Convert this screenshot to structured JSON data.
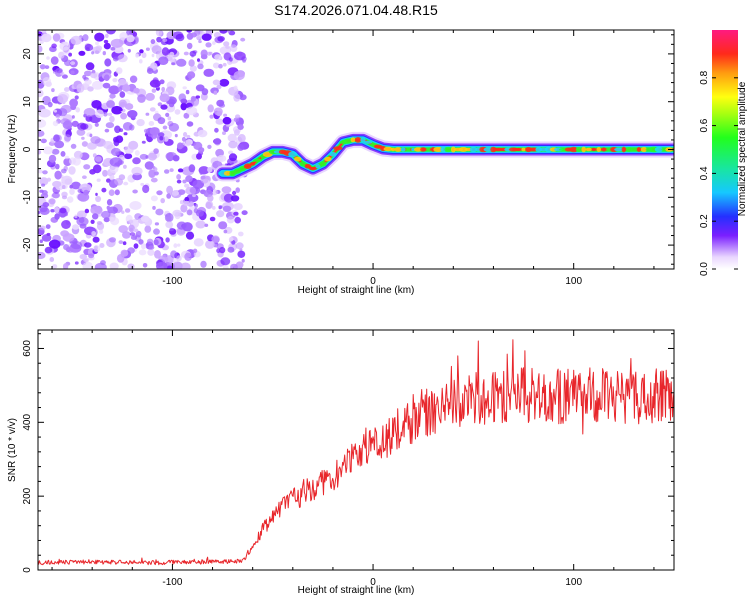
{
  "title": "S174.2026.071.04.48.R15",
  "chart_data": [
    {
      "type": "heatmap",
      "xlabel": "Height of straight line (km)",
      "ylabel": "Frequency (Hz)",
      "xlim": [
        -167,
        150
      ],
      "ylim": [
        -25,
        25
      ],
      "xticks": [
        -100,
        0,
        100
      ],
      "yticks": [
        -20,
        -10,
        0,
        10,
        20
      ],
      "colorbar": {
        "label": "Normalized spectral amplitude",
        "range": [
          0,
          1
        ],
        "ticks": [
          0.0,
          0.2,
          0.4,
          0.6,
          0.8
        ]
      },
      "noise_region_x": [
        -167,
        -68
      ],
      "ridge": {
        "x": [
          -75,
          -70,
          -65,
          -60,
          -55,
          -50,
          -45,
          -40,
          -35,
          -30,
          -25,
          -20,
          -15,
          -10,
          -5,
          0,
          5,
          10,
          150
        ],
        "freq": [
          -5,
          -5,
          -4,
          -3,
          -1.5,
          -0.5,
          -0.5,
          -1,
          -3,
          -4,
          -3,
          -1,
          1.5,
          2,
          2,
          1,
          0.2,
          0,
          0
        ]
      }
    },
    {
      "type": "line",
      "xlabel": "Height of straight line (km)",
      "ylabel": "SNR (10 * v/v)",
      "xlim": [
        -167,
        150
      ],
      "ylim": [
        0,
        650
      ],
      "xticks": [
        -100,
        0,
        100
      ],
      "yticks": [
        0,
        200,
        400,
        600
      ],
      "series": [
        {
          "name": "SNR",
          "color": "#e8262b",
          "x": [
            -167,
            -140,
            -110,
            -80,
            -65,
            -60,
            -55,
            -50,
            -45,
            -40,
            -35,
            -30,
            -25,
            -20,
            -15,
            -10,
            -5,
            0,
            5,
            10,
            15,
            20,
            25,
            30,
            40,
            50,
            60,
            70,
            80,
            90,
            100,
            110,
            120,
            130,
            140,
            150
          ],
          "y": [
            20,
            22,
            20,
            22,
            25,
            60,
            110,
            140,
            170,
            190,
            205,
            225,
            235,
            250,
            280,
            300,
            320,
            335,
            350,
            370,
            390,
            410,
            425,
            430,
            450,
            460,
            470,
            470,
            475,
            470,
            470,
            475,
            470,
            465,
            470,
            470
          ]
        }
      ]
    }
  ]
}
